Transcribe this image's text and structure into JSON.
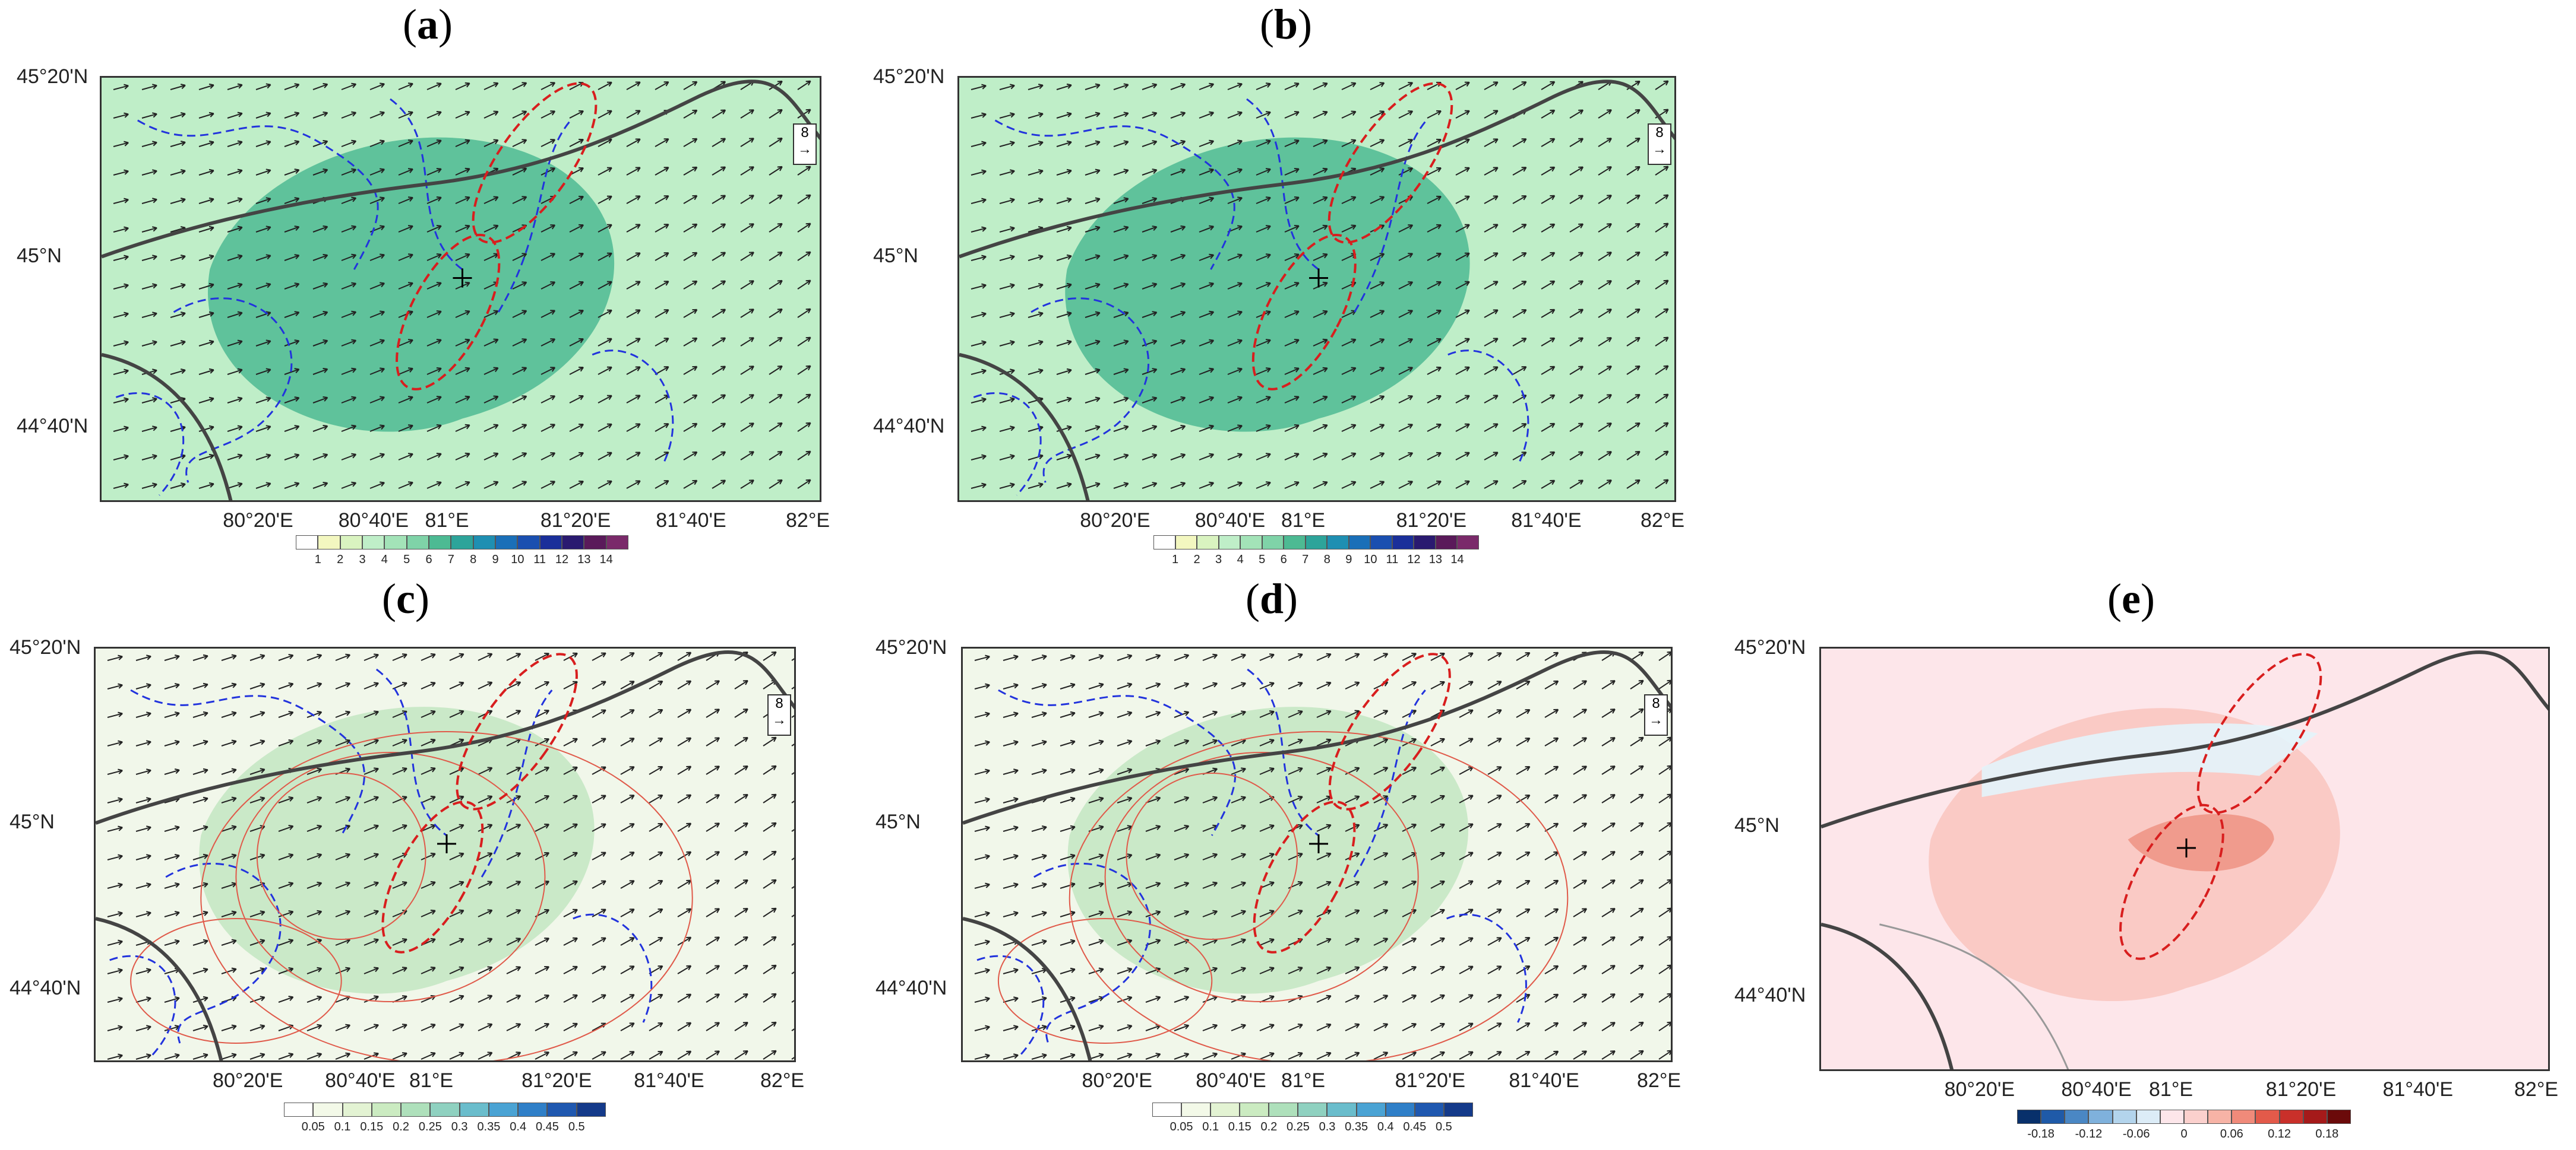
{
  "panels": [
    {
      "id": "a",
      "label": "a",
      "bg": "#bfeec8",
      "region_color": "#4dba93",
      "legend": "wind",
      "center": true
    },
    {
      "id": "b",
      "label": "b",
      "bg": "#bfeec8",
      "region_color": "#4dba93",
      "legend": "wind",
      "center": true
    },
    {
      "id": "c",
      "label": "c",
      "bg": "#f1f7ea",
      "region_color": "#c3e6c2",
      "legend": "ratio",
      "center": true
    },
    {
      "id": "d",
      "label": "d",
      "bg": "#f1f7ea",
      "region_color": "#c3e6c2",
      "legend": "ratio",
      "center": true
    },
    {
      "id": "e",
      "label": "e",
      "bg": "#fde6ea",
      "region_color": "#f7b3a6",
      "legend": "diff",
      "center": true
    }
  ],
  "axes": {
    "x_ticks": [
      "80°20'E",
      "80°40'E",
      "81°E",
      "81°20'E",
      "81°40'E",
      "82°E"
    ],
    "y_ticks": [
      "45°20'N",
      "45°N",
      "44°40'N"
    ]
  },
  "legends": {
    "wind": {
      "labels": [
        "1",
        "2",
        "3",
        "4",
        "5",
        "6",
        "7",
        "8",
        "9",
        "10",
        "11",
        "12",
        "13",
        "14"
      ],
      "colors": [
        "#ffffff",
        "#f3f7c0",
        "#d9f3c0",
        "#bfeec8",
        "#a3e3b8",
        "#7fd3a8",
        "#4dba93",
        "#2da49a",
        "#1f8fb2",
        "#1a6fb8",
        "#1a4fb0",
        "#1a2f9a",
        "#2a1a70",
        "#5a1a5a",
        "#7a2a6a"
      ]
    },
    "ratio": {
      "labels": [
        "0.05",
        "0.1",
        "0.15",
        "0.2",
        "0.25",
        "0.3",
        "0.35",
        "0.4",
        "0.45",
        "0.5"
      ],
      "colors": [
        "#ffffff",
        "#f3f9e8",
        "#e3f3d3",
        "#cbebc1",
        "#aee0bb",
        "#8fd1c0",
        "#6abdcc",
        "#4aa3d4",
        "#2f7fc8",
        "#1f58b0",
        "#143a8a"
      ]
    },
    "diff": {
      "labels": [
        "-0.18",
        "-0.12",
        "-0.06",
        "0",
        "0.06",
        "0.12",
        "0.18"
      ],
      "colors": [
        "#08306b",
        "#1f5aa8",
        "#4a87c4",
        "#7fb1dc",
        "#b3d4ec",
        "#dcecf7",
        "#fde6ea",
        "#fbd0cd",
        "#f7b3a6",
        "#f08a7a",
        "#e35a4a",
        "#c9302a",
        "#a51a1a",
        "#6b0a0a"
      ]
    }
  },
  "wind_ref": "8"
}
